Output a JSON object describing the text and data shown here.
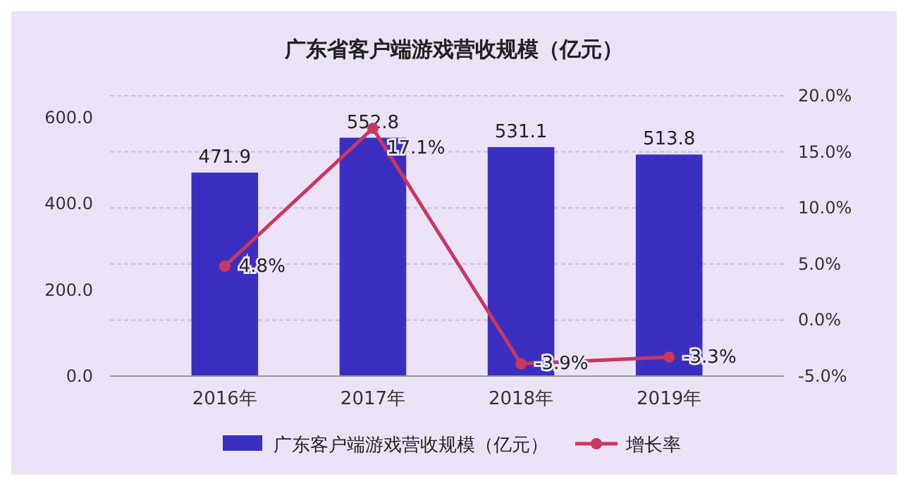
{
  "chart_data": {
    "type": "bar",
    "title": "广东省客户端游戏营收规模（亿元）",
    "categories": [
      "2016年",
      "2017年",
      "2018年",
      "2019年"
    ],
    "series": [
      {
        "name": "广东客户端游戏营收规模（亿元）",
        "color": "#3a2fc0",
        "values": [
          471.9,
          552.8,
          531.1,
          513.8
        ],
        "value_labels": [
          "471.9",
          "552.8",
          "531.1",
          "513.8"
        ]
      },
      {
        "name": "增长率",
        "type": "line",
        "axis": "y2",
        "color": "#c8385e",
        "marker": "circle",
        "values": [
          4.8,
          17.1,
          -3.9,
          -3.3
        ],
        "value_labels": [
          "4.8%",
          "17.1%",
          "-3.9%",
          "-3.3%"
        ]
      }
    ],
    "ylim": [
      0,
      650
    ],
    "yticks": [
      {
        "value": 0,
        "label": "0.0"
      },
      {
        "value": 200,
        "label": "200.0"
      },
      {
        "value": 400,
        "label": "400.0"
      },
      {
        "value": 600,
        "label": "600.0"
      }
    ],
    "y2lim": [
      -5,
      20
    ],
    "y2ticks": [
      {
        "value": -5,
        "label": "-5.0%"
      },
      {
        "value": 0,
        "label": "0.0%"
      },
      {
        "value": 5,
        "label": "5.0%"
      },
      {
        "value": 10,
        "label": "10.0%"
      },
      {
        "value": 15,
        "label": "15.0%"
      },
      {
        "value": 20,
        "label": "20.0%"
      }
    ],
    "grid": true,
    "legend": "bottom"
  }
}
